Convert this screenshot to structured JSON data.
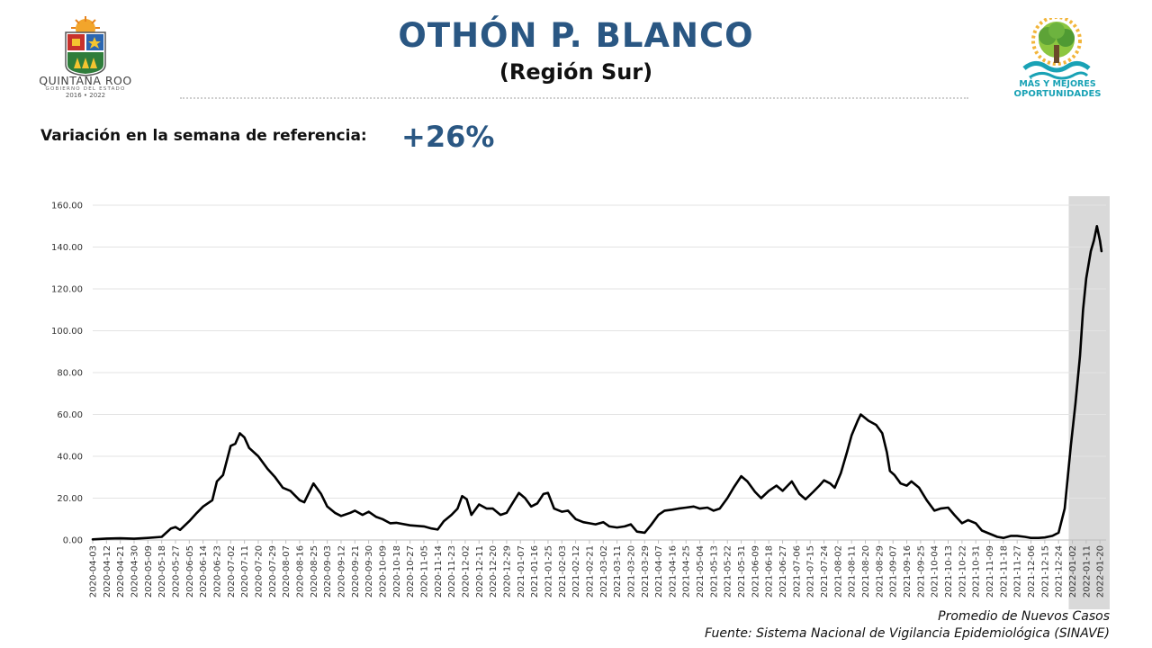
{
  "header": {
    "title": "OTHÓN P. BLANCO",
    "subtitle": "(Región Sur)",
    "variation_label": "Variación en la semana de referencia:",
    "variation_value": "+26%"
  },
  "logos": {
    "left": {
      "name": "QUINTANA ROO",
      "subtitle": "GOBIERNO DEL ESTADO",
      "years": "2016 • 2022",
      "icon": "quintana-roo-coat-of-arms-icon"
    },
    "right": {
      "line1": "MÁS Y MEJORES",
      "line2": "OPORTUNIDADES",
      "icon": "tree-logo-icon"
    }
  },
  "footer": {
    "line1": "Promedio de Nuevos Casos",
    "line2": "Fuente: Sistema Nacional de Vigilancia Epidemiológica (SINAVE)"
  },
  "colors": {
    "title": "#2a5783",
    "line": "#000000",
    "highlight": "#d9d9d9",
    "grid": "#e3e3e3",
    "logo_text": "#19a2b5"
  },
  "chart_data": {
    "type": "line",
    "title": "",
    "xlabel": "",
    "ylabel": "",
    "ylim": [
      0,
      160
    ],
    "yticks": [
      "0.00",
      "20.00",
      "40.00",
      "60.00",
      "80.00",
      "100.00",
      "120.00",
      "140.00",
      "160.00"
    ],
    "grid": "horizontal",
    "x_start": "2020-04-03",
    "x_end": "2022-01-24",
    "highlight_range": [
      "2022-01-02",
      "2022-01-24"
    ],
    "xticks": [
      "2020-04-03",
      "2020-04-12",
      "2020-04-21",
      "2020-04-30",
      "2020-05-09",
      "2020-05-18",
      "2020-05-27",
      "2020-06-05",
      "2020-06-14",
      "2020-06-23",
      "2020-07-02",
      "2020-07-11",
      "2020-07-20",
      "2020-07-29",
      "2020-08-07",
      "2020-08-16",
      "2020-08-25",
      "2020-09-03",
      "2020-09-12",
      "2020-09-21",
      "2020-09-30",
      "2020-10-09",
      "2020-10-18",
      "2020-10-27",
      "2020-11-05",
      "2020-11-14",
      "2020-11-23",
      "2020-12-02",
      "2020-12-11",
      "2020-12-20",
      "2020-12-29",
      "2021-01-07",
      "2021-01-16",
      "2021-01-25",
      "2021-02-03",
      "2021-02-12",
      "2021-02-21",
      "2021-03-02",
      "2021-03-11",
      "2021-03-20",
      "2021-03-29",
      "2021-04-07",
      "2021-04-16",
      "2021-04-25",
      "2021-05-04",
      "2021-05-13",
      "2021-05-22",
      "2021-05-31",
      "2021-06-09",
      "2021-06-18",
      "2021-06-27",
      "2021-07-06",
      "2021-07-15",
      "2021-07-24",
      "2021-08-02",
      "2021-08-11",
      "2021-08-20",
      "2021-08-29",
      "2021-09-07",
      "2021-09-16",
      "2021-09-25",
      "2021-10-04",
      "2021-10-13",
      "2021-10-22",
      "2021-10-31",
      "2021-11-09",
      "2021-11-18",
      "2021-11-27",
      "2021-12-06",
      "2021-12-15",
      "2021-12-24",
      "2022-01-02",
      "2022-01-11",
      "2022-01-20"
    ],
    "series": [
      {
        "values": [
          [
            "2020-04-03",
            0.3
          ],
          [
            "2020-04-12",
            0.7
          ],
          [
            "2020-04-21",
            0.8
          ],
          [
            "2020-04-30",
            0.6
          ],
          [
            "2020-05-09",
            1.0
          ],
          [
            "2020-05-18",
            1.5
          ],
          [
            "2020-05-24",
            5.5
          ],
          [
            "2020-05-27",
            6.2
          ],
          [
            "2020-05-30",
            4.8
          ],
          [
            "2020-06-05",
            9.0
          ],
          [
            "2020-06-10",
            13.0
          ],
          [
            "2020-06-14",
            16.0
          ],
          [
            "2020-06-20",
            19.0
          ],
          [
            "2020-06-23",
            28.0
          ],
          [
            "2020-06-27",
            31.0
          ],
          [
            "2020-07-02",
            45.0
          ],
          [
            "2020-07-05",
            46.0
          ],
          [
            "2020-07-08",
            51.0
          ],
          [
            "2020-07-11",
            49.0
          ],
          [
            "2020-07-14",
            44.0
          ],
          [
            "2020-07-20",
            40.0
          ],
          [
            "2020-07-26",
            34.0
          ],
          [
            "2020-07-31",
            30.0
          ],
          [
            "2020-08-05",
            25.0
          ],
          [
            "2020-08-10",
            23.5
          ],
          [
            "2020-08-16",
            19.0
          ],
          [
            "2020-08-19",
            18.0
          ],
          [
            "2020-08-25",
            27.0
          ],
          [
            "2020-08-30",
            22.0
          ],
          [
            "2020-09-03",
            16.0
          ],
          [
            "2020-09-08",
            13.0
          ],
          [
            "2020-09-12",
            11.5
          ],
          [
            "2020-09-18",
            13.0
          ],
          [
            "2020-09-21",
            14.0
          ],
          [
            "2020-09-26",
            12.0
          ],
          [
            "2020-09-30",
            13.5
          ],
          [
            "2020-10-05",
            11.0
          ],
          [
            "2020-10-09",
            10.0
          ],
          [
            "2020-10-14",
            8.0
          ],
          [
            "2020-10-18",
            8.2
          ],
          [
            "2020-10-27",
            7.0
          ],
          [
            "2020-11-05",
            6.5
          ],
          [
            "2020-11-10",
            5.5
          ],
          [
            "2020-11-14",
            5.0
          ],
          [
            "2020-11-18",
            9.0
          ],
          [
            "2020-11-23",
            12.0
          ],
          [
            "2020-11-27",
            15.0
          ],
          [
            "2020-11-30",
            21.0
          ],
          [
            "2020-12-03",
            19.5
          ],
          [
            "2020-12-06",
            12.0
          ],
          [
            "2020-12-11",
            17.0
          ],
          [
            "2020-12-16",
            15.0
          ],
          [
            "2020-12-20",
            15.0
          ],
          [
            "2020-12-25",
            12.0
          ],
          [
            "2020-12-29",
            13.0
          ],
          [
            "2021-01-03",
            19.0
          ],
          [
            "2021-01-06",
            22.5
          ],
          [
            "2021-01-10",
            20.0
          ],
          [
            "2021-01-14",
            16.0
          ],
          [
            "2021-01-18",
            17.5
          ],
          [
            "2021-01-22",
            22.0
          ],
          [
            "2021-01-25",
            22.5
          ],
          [
            "2021-01-29",
            15.0
          ],
          [
            "2021-02-03",
            13.5
          ],
          [
            "2021-02-07",
            14.0
          ],
          [
            "2021-02-12",
            10.0
          ],
          [
            "2021-02-17",
            8.5
          ],
          [
            "2021-02-21",
            8.0
          ],
          [
            "2021-02-25",
            7.5
          ],
          [
            "2021-03-02",
            8.5
          ],
          [
            "2021-03-06",
            6.5
          ],
          [
            "2021-03-11",
            6.0
          ],
          [
            "2021-03-16",
            6.5
          ],
          [
            "2021-03-20",
            7.5
          ],
          [
            "2021-03-24",
            4.0
          ],
          [
            "2021-03-29",
            3.5
          ],
          [
            "2021-04-02",
            7.0
          ],
          [
            "2021-04-07",
            12.0
          ],
          [
            "2021-04-11",
            14.0
          ],
          [
            "2021-04-16",
            14.5
          ],
          [
            "2021-04-20",
            15.0
          ],
          [
            "2021-04-25",
            15.5
          ],
          [
            "2021-04-30",
            16.0
          ],
          [
            "2021-05-04",
            15.0
          ],
          [
            "2021-05-09",
            15.5
          ],
          [
            "2021-05-13",
            14.0
          ],
          [
            "2021-05-17",
            15.0
          ],
          [
            "2021-05-22",
            20.0
          ],
          [
            "2021-05-26",
            25.0
          ],
          [
            "2021-05-31",
            30.5
          ],
          [
            "2021-06-04",
            28.0
          ],
          [
            "2021-06-09",
            23.0
          ],
          [
            "2021-06-13",
            20.0
          ],
          [
            "2021-06-18",
            23.5
          ],
          [
            "2021-06-23",
            26.0
          ],
          [
            "2021-06-27",
            23.5
          ],
          [
            "2021-07-03",
            28.0
          ],
          [
            "2021-07-08",
            22.0
          ],
          [
            "2021-07-12",
            19.5
          ],
          [
            "2021-07-17",
            23.0
          ],
          [
            "2021-07-21",
            26.0
          ],
          [
            "2021-07-24",
            28.5
          ],
          [
            "2021-07-28",
            27.0
          ],
          [
            "2021-07-31",
            25.0
          ],
          [
            "2021-08-04",
            32.0
          ],
          [
            "2021-08-08",
            42.0
          ],
          [
            "2021-08-11",
            50.0
          ],
          [
            "2021-08-15",
            57.0
          ],
          [
            "2021-08-17",
            60.0
          ],
          [
            "2021-08-22",
            57.0
          ],
          [
            "2021-08-27",
            55.0
          ],
          [
            "2021-08-31",
            51.0
          ],
          [
            "2021-09-03",
            42.0
          ],
          [
            "2021-09-05",
            33.0
          ],
          [
            "2021-09-08",
            31.0
          ],
          [
            "2021-09-12",
            27.0
          ],
          [
            "2021-09-16",
            26.0
          ],
          [
            "2021-09-19",
            28.0
          ],
          [
            "2021-09-24",
            25.0
          ],
          [
            "2021-09-29",
            19.0
          ],
          [
            "2021-10-04",
            14.0
          ],
          [
            "2021-10-08",
            15.0
          ],
          [
            "2021-10-13",
            15.5
          ],
          [
            "2021-10-17",
            12.0
          ],
          [
            "2021-10-22",
            8.0
          ],
          [
            "2021-10-26",
            9.5
          ],
          [
            "2021-10-31",
            8.0
          ],
          [
            "2021-11-04",
            4.5
          ],
          [
            "2021-11-09",
            3.0
          ],
          [
            "2021-11-14",
            1.5
          ],
          [
            "2021-11-18",
            1.0
          ],
          [
            "2021-11-23",
            2.0
          ],
          [
            "2021-11-27",
            2.0
          ],
          [
            "2021-12-02",
            1.5
          ],
          [
            "2021-12-06",
            1.0
          ],
          [
            "2021-12-11",
            1.0
          ],
          [
            "2021-12-15",
            1.2
          ],
          [
            "2021-12-20",
            2.0
          ],
          [
            "2021-12-24",
            3.5
          ],
          [
            "2021-12-28",
            15.0
          ],
          [
            "2022-01-01",
            45.0
          ],
          [
            "2022-01-04",
            65.0
          ],
          [
            "2022-01-07",
            88.0
          ],
          [
            "2022-01-09",
            110.0
          ],
          [
            "2022-01-11",
            125.0
          ],
          [
            "2022-01-14",
            138.0
          ],
          [
            "2022-01-16",
            143.0
          ],
          [
            "2022-01-18",
            150.0
          ],
          [
            "2022-01-20",
            143.0
          ],
          [
            "2022-01-21",
            138.0
          ]
        ]
      }
    ]
  }
}
